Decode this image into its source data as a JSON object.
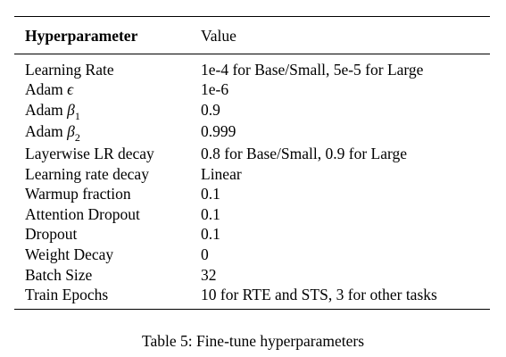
{
  "table": {
    "header": {
      "col1": "Hyperparameter",
      "col2": "Value"
    },
    "rows": [
      {
        "name": "Learning Rate",
        "value": "1e-4 for Base/Small, 5e-5 for Large"
      },
      {
        "name_prefix": "Adam ",
        "symbol": "ϵ",
        "subscript": "",
        "value": "1e-6"
      },
      {
        "name_prefix": "Adam ",
        "symbol": "β",
        "subscript": "1",
        "value": "0.9"
      },
      {
        "name_prefix": "Adam ",
        "symbol": "β",
        "subscript": "2",
        "value": "0.999"
      },
      {
        "name": "Layerwise LR decay",
        "value": "0.8 for Base/Small, 0.9 for Large"
      },
      {
        "name": "Learning rate decay",
        "value": "Linear"
      },
      {
        "name": "Warmup fraction",
        "value": "0.1"
      },
      {
        "name": "Attention Dropout",
        "value": "0.1"
      },
      {
        "name": "Dropout",
        "value": "0.1"
      },
      {
        "name": "Weight Decay",
        "value": "0"
      },
      {
        "name": "Batch Size",
        "value": "32"
      },
      {
        "name": "Train Epochs",
        "value": "10 for RTE and STS, 3 for other tasks"
      }
    ]
  },
  "caption": "Table 5: Fine-tune hyperparameters"
}
